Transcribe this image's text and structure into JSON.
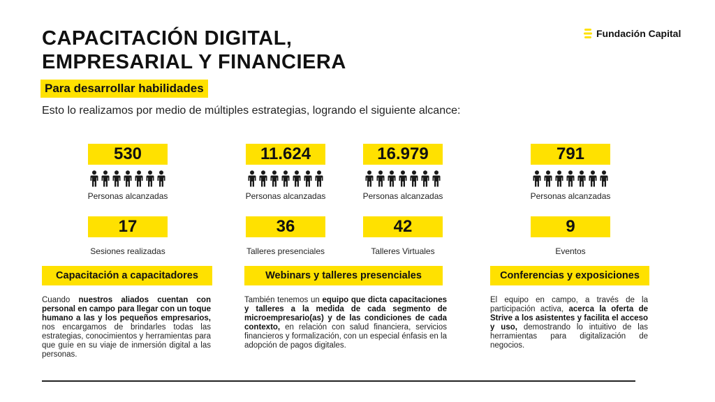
{
  "title": {
    "line1": "CAPACITACIÓN DIGITAL,",
    "line2": "EMPRESARIAL Y FINANCIERA"
  },
  "brand": {
    "name": "Fundación Capital",
    "color": "#ffe100"
  },
  "subtitle": "Para desarrollar habilidades",
  "intro": "Esto lo realizamos por medio de múltiples estrategias, logrando el siguiente alcance:",
  "accent_color": "#ffe100",
  "reach": [
    {
      "value": "530",
      "label": "Personas alcanzadas",
      "icon": "people-icon"
    },
    {
      "value": "11.624",
      "label": "Personas alcanzadas",
      "icon": "people-icon"
    },
    {
      "value": "16.979",
      "label": "Personas alcanzadas",
      "icon": "people-icon"
    },
    {
      "value": "791",
      "label": "Personas alcanzadas",
      "icon": "people-icon"
    }
  ],
  "activities": [
    {
      "value": "17",
      "label": "Sesiones realizadas"
    },
    {
      "value": "36",
      "label": "Talleres presenciales"
    },
    {
      "value": "42",
      "label": "Talleres Virtuales"
    },
    {
      "value": "9",
      "label": "Eventos"
    }
  ],
  "sections": [
    {
      "heading": "Capacitación a capacitadores",
      "text": [
        {
          "t": "Cuando ",
          "b": false
        },
        {
          "t": "nuestros aliados cuentan con personal en campo para llegar con un toque humano a las y los pequeños empresarios,",
          "b": true
        },
        {
          "t": " nos encargamos de brindarles todas las estrategias, conocimientos y herramientas para que guíe en su viaje de inmersión digital a las personas.",
          "b": false
        }
      ]
    },
    {
      "heading": "Webinars y talleres presenciales",
      "text": [
        {
          "t": "También tenemos un ",
          "b": false
        },
        {
          "t": "equipo que dicta capacitaciones y talleres a la medida de cada segmento de microempresario(as) y de las condiciones de cada contexto,",
          "b": true
        },
        {
          "t": " en relación con salud financiera, servicios financieros y formalización, con un especial énfasis en la adopción de pagos digitales.",
          "b": false
        }
      ]
    },
    {
      "heading": "Conferencias y exposiciones",
      "text": [
        {
          "t": "El equipo en campo, a través de la participación activa, ",
          "b": false
        },
        {
          "t": "acerca la oferta de Strive a los asistentes y facilita el acceso y uso,",
          "b": true
        },
        {
          "t": " demostrando lo intuitivo de las herramientas para digitalización de negocios.",
          "b": false
        }
      ]
    }
  ]
}
